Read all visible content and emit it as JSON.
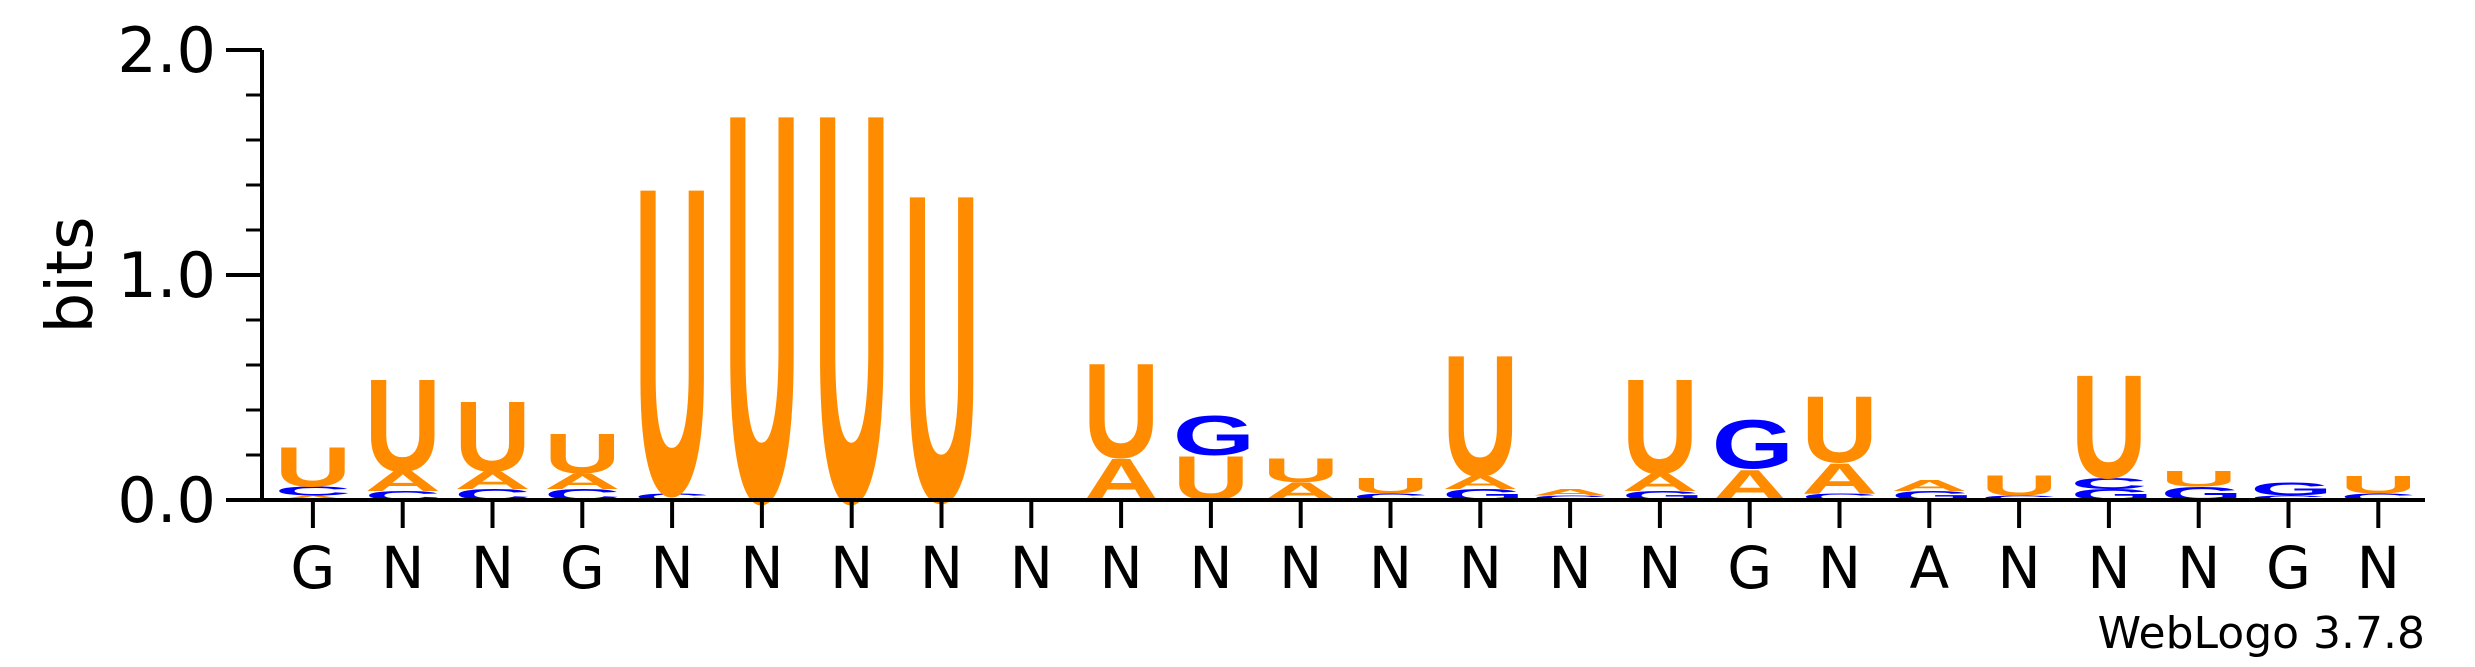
{
  "chart_data": {
    "type": "sequence-logo",
    "ylabel": "bits",
    "ylim": [
      0,
      2.0
    ],
    "yticks": [
      {
        "value": 0.0,
        "label": "0.0"
      },
      {
        "value": 1.0,
        "label": "1.0"
      },
      {
        "value": 2.0,
        "label": "2.0"
      }
    ],
    "consensus": [
      "G",
      "N",
      "N",
      "G",
      "N",
      "N",
      "N",
      "N",
      "N",
      "N",
      "N",
      "N",
      "N",
      "N",
      "N",
      "N",
      "G",
      "N",
      "A",
      "N",
      "N",
      "N",
      "G",
      "N"
    ],
    "colors": {
      "U": "#ff8c00",
      "A": "#ff8c00",
      "C": "#0000ff",
      "G": "#0000ff"
    },
    "positions": [
      {
        "stack": [
          {
            "letter": "A",
            "bits": 0.02
          },
          {
            "letter": "C",
            "bits": 0.04
          },
          {
            "letter": "U",
            "bits": 0.18
          }
        ]
      },
      {
        "stack": [
          {
            "letter": "C",
            "bits": 0.04
          },
          {
            "letter": "A",
            "bits": 0.09
          },
          {
            "letter": "U",
            "bits": 0.42
          }
        ]
      },
      {
        "stack": [
          {
            "letter": "C",
            "bits": 0.05
          },
          {
            "letter": "A",
            "bits": 0.08
          },
          {
            "letter": "U",
            "bits": 0.32
          }
        ]
      },
      {
        "stack": [
          {
            "letter": "C",
            "bits": 0.05
          },
          {
            "letter": "A",
            "bits": 0.07
          },
          {
            "letter": "U",
            "bits": 0.18
          }
        ]
      },
      {
        "stack": [
          {
            "letter": "C",
            "bits": 0.03
          },
          {
            "letter": "U",
            "bits": 1.4
          }
        ]
      },
      {
        "stack": [
          {
            "letter": "U",
            "bits": 1.77
          }
        ]
      },
      {
        "stack": [
          {
            "letter": "U",
            "bits": 1.77
          }
        ]
      },
      {
        "stack": [
          {
            "letter": "U",
            "bits": 1.4
          }
        ]
      },
      {
        "stack": []
      },
      {
        "stack": [
          {
            "letter": "A",
            "bits": 0.19
          },
          {
            "letter": "U",
            "bits": 0.43
          }
        ]
      },
      {
        "stack": [
          {
            "letter": "U",
            "bits": 0.2
          },
          {
            "letter": "G",
            "bits": 0.18
          }
        ]
      },
      {
        "stack": [
          {
            "letter": "A",
            "bits": 0.08
          },
          {
            "letter": "U",
            "bits": 0.11
          }
        ]
      },
      {
        "stack": [
          {
            "letter": "C",
            "bits": 0.03
          },
          {
            "letter": "U",
            "bits": 0.07
          }
        ]
      },
      {
        "stack": [
          {
            "letter": "G",
            "bits": 0.05
          },
          {
            "letter": "A",
            "bits": 0.06
          },
          {
            "letter": "U",
            "bits": 0.55
          }
        ]
      },
      {
        "stack": [
          {
            "letter": "C",
            "bits": 0.02
          },
          {
            "letter": "A",
            "bits": 0.03
          }
        ]
      },
      {
        "stack": [
          {
            "letter": "G",
            "bits": 0.04
          },
          {
            "letter": "A",
            "bits": 0.08
          },
          {
            "letter": "U",
            "bits": 0.43
          }
        ]
      },
      {
        "stack": [
          {
            "letter": "A",
            "bits": 0.14
          },
          {
            "letter": "G",
            "bits": 0.22
          }
        ]
      },
      {
        "stack": [
          {
            "letter": "C",
            "bits": 0.03
          },
          {
            "letter": "A",
            "bits": 0.14
          },
          {
            "letter": "U",
            "bits": 0.3
          }
        ]
      },
      {
        "stack": [
          {
            "letter": "G",
            "bits": 0.04
          },
          {
            "letter": "A",
            "bits": 0.05
          }
        ]
      },
      {
        "stack": [
          {
            "letter": "C",
            "bits": 0.02
          },
          {
            "letter": "U",
            "bits": 0.09
          }
        ]
      },
      {
        "stack": [
          {
            "letter": "G",
            "bits": 0.05
          },
          {
            "letter": "C",
            "bits": 0.05
          },
          {
            "letter": "U",
            "bits": 0.47
          }
        ]
      },
      {
        "stack": [
          {
            "letter": "G",
            "bits": 0.06
          },
          {
            "letter": "U",
            "bits": 0.07
          }
        ]
      },
      {
        "stack": [
          {
            "letter": "C",
            "bits": 0.02
          },
          {
            "letter": "G",
            "bits": 0.06
          }
        ]
      },
      {
        "stack": [
          {
            "letter": "C",
            "bits": 0.03
          },
          {
            "letter": "U",
            "bits": 0.08
          }
        ]
      }
    ]
  },
  "credit": "WebLogo 3.7.8"
}
